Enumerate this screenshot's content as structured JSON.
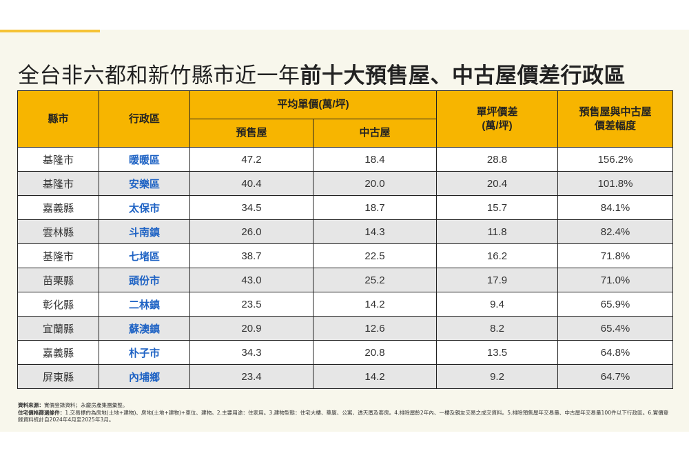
{
  "title": {
    "part1": "全台非六都和新竹縣市近一年",
    "part2": "前十大預售屋、中古屋價差行政區"
  },
  "table": {
    "headers": {
      "county": "縣市",
      "district": "行政區",
      "avg_price": "平均單價(萬/坪)",
      "presale": "預售屋",
      "used": "中古屋",
      "diff_line1": "單坪價差",
      "diff_line2": "(萬/坪)",
      "pct_line1": "預售屋與中古屋",
      "pct_line2": "價差幅度"
    },
    "rows": [
      {
        "county": "基隆市",
        "district": "暖暖區",
        "presale": "47.2",
        "used": "18.4",
        "diff": "28.8",
        "pct": "156.2%"
      },
      {
        "county": "基隆市",
        "district": "安樂區",
        "presale": "40.4",
        "used": "20.0",
        "diff": "20.4",
        "pct": "101.8%"
      },
      {
        "county": "嘉義縣",
        "district": "太保市",
        "presale": "34.5",
        "used": "18.7",
        "diff": "15.7",
        "pct": "84.1%"
      },
      {
        "county": "雲林縣",
        "district": "斗南鎮",
        "presale": "26.0",
        "used": "14.3",
        "diff": "11.8",
        "pct": "82.4%"
      },
      {
        "county": "基隆市",
        "district": "七堵區",
        "presale": "38.7",
        "used": "22.5",
        "diff": "16.2",
        "pct": "71.8%"
      },
      {
        "county": "苗栗縣",
        "district": "頭份市",
        "presale": "43.0",
        "used": "25.2",
        "diff": "17.9",
        "pct": "71.0%"
      },
      {
        "county": "彰化縣",
        "district": "二林鎮",
        "presale": "23.5",
        "used": "14.2",
        "diff": "9.4",
        "pct": "65.9%"
      },
      {
        "county": "宜蘭縣",
        "district": "蘇澳鎮",
        "presale": "20.9",
        "used": "12.6",
        "diff": "8.2",
        "pct": "65.4%"
      },
      {
        "county": "嘉義縣",
        "district": "朴子市",
        "presale": "34.3",
        "used": "20.8",
        "diff": "13.5",
        "pct": "64.8%"
      },
      {
        "county": "屏東縣",
        "district": "內埔鄉",
        "presale": "23.4",
        "used": "14.2",
        "diff": "9.2",
        "pct": "64.7%"
      }
    ]
  },
  "footnotes": {
    "source_label": "資料來源：",
    "source_text": "實價登錄資料；永慶房產集團彙整。",
    "criteria_label": "住宅價格篩選條件：",
    "criteria_text": "1.交易標的為房地(土地+建物)、房地(土地+建物)+車位、建物。2.主要用途：住家用。3.建物型態：住宅大樓、華廈、公寓、透天厝及套房。4.排除屋齡2年內、一樓及親友交易之成交資料。5.排除預售屋年交易量、中古屋年交易量100件以下行政區。6.實價登錄資料統計自2024年4月至2025年3月。"
  },
  "colors": {
    "header_bg": "#f7b500",
    "district_text": "#1f63c4",
    "row_alt": "#e6e6e6",
    "canvas_bg": "#f8f7ec"
  }
}
